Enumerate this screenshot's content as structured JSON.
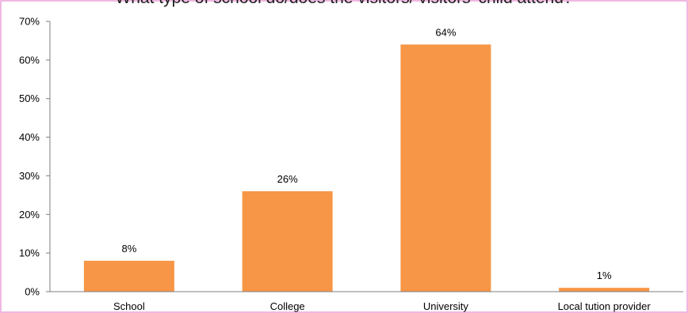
{
  "colors": {
    "border": "#f0b8e2",
    "bar": "#f79646",
    "axis": "#7f7f7f",
    "text": "#000000"
  },
  "chart_data": {
    "type": "bar",
    "title": "What type of school do/does the visitors/ visitors' child attend?",
    "categories": [
      "School",
      "College",
      "University",
      "Local tution provider"
    ],
    "values": [
      8,
      26,
      64,
      1
    ],
    "data_labels": [
      "8%",
      "26%",
      "64%",
      "1%"
    ],
    "ylim": [
      0,
      70
    ],
    "yticks": [
      0,
      10,
      20,
      30,
      40,
      50,
      60,
      70
    ],
    "ytick_labels": [
      "0%",
      "10%",
      "20%",
      "30%",
      "40%",
      "50%",
      "60%",
      "70%"
    ],
    "grid": false,
    "legend": "none",
    "xlabel": "",
    "ylabel": ""
  }
}
